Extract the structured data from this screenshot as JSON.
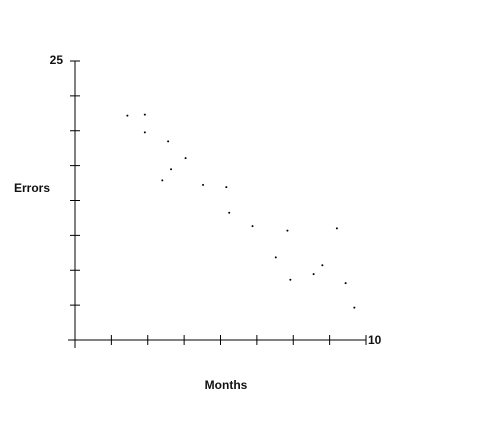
{
  "chart_data": {
    "type": "scatter",
    "x_label": "Months",
    "y_label": "Errors",
    "x": [
      1.8,
      2.4,
      2.4,
      3.2,
      3.0,
      3.3,
      3.8,
      4.4,
      5.2,
      5.3,
      6.1,
      6.9,
      7.3,
      7.4,
      8.2,
      8.5,
      9.0,
      9.3,
      9.6
    ],
    "values": [
      20.1,
      20.2,
      18.6,
      17.8,
      14.3,
      15.3,
      16.3,
      13.9,
      13.7,
      11.4,
      10.2,
      7.4,
      9.8,
      5.4,
      5.9,
      6.7,
      10.0,
      5.1,
      2.9
    ],
    "color": "#000000",
    "xlim": [
      0,
      10
    ],
    "ylim": [
      0,
      25
    ],
    "xticks": [
      10
    ],
    "yticks": [
      25
    ],
    "x_minor_ticks": [
      0,
      1.25,
      2.5,
      3.75,
      5,
      6.25,
      7.5,
      8.75,
      10
    ],
    "y_minor_ticks": [
      0,
      3.125,
      6.25,
      9.375,
      12.5,
      15.625,
      18.75,
      21.875,
      25
    ]
  }
}
